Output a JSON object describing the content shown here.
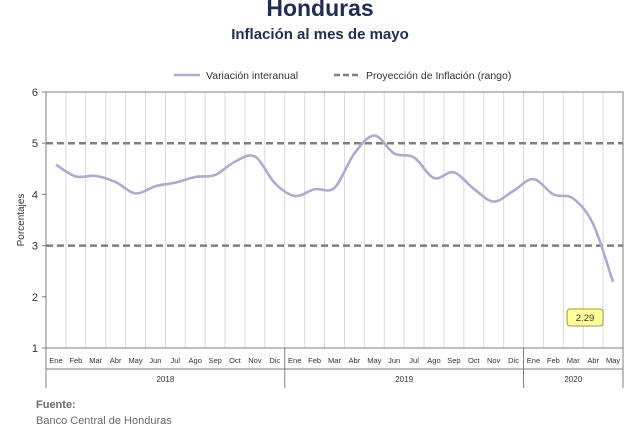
{
  "header": {
    "title": "Honduras",
    "subtitle": "Inflación al mes de mayo"
  },
  "source": {
    "label": "Fuente:",
    "text": "Banco Central de Honduras"
  },
  "colors": {
    "series": "#b4a7d0",
    "projection": "#7f7f7f",
    "title": "#1f2d55",
    "callout_fill": "#ffff99"
  },
  "chart_data": {
    "type": "line",
    "ylabel": "Porcentajes",
    "ylim": [
      1,
      6
    ],
    "yticks": [
      1,
      2,
      3,
      4,
      5,
      6
    ],
    "grid": "vertical",
    "legend_position": "top",
    "month_labels": [
      "Ene",
      "Feb",
      "Mar",
      "Abr",
      "May",
      "Jun",
      "Jul",
      "Ago",
      "Sep",
      "Oct",
      "Nov",
      "Dic",
      "Ene",
      "Feb",
      "Mar",
      "Abr",
      "May",
      "Jun",
      "Jul",
      "Ago",
      "Sep",
      "Oct",
      "Nov",
      "Dic",
      "Ene",
      "Feb",
      "Mar",
      "Abr",
      "May"
    ],
    "year_groups": [
      {
        "label": "2018",
        "count": 12
      },
      {
        "label": "2019",
        "count": 12
      },
      {
        "label": "2020",
        "count": 5
      }
    ],
    "series": [
      {
        "name": "Variación interanual",
        "values": [
          4.58,
          4.35,
          4.36,
          4.24,
          4.02,
          4.16,
          4.23,
          4.34,
          4.38,
          4.64,
          4.74,
          4.22,
          3.97,
          4.1,
          4.13,
          4.8,
          5.15,
          4.8,
          4.72,
          4.32,
          4.43,
          4.11,
          3.86,
          4.07,
          4.3,
          4.0,
          3.92,
          3.42,
          2.29
        ]
      },
      {
        "name": "Proyección de Inflación (rango)",
        "band": [
          3,
          5
        ]
      }
    ],
    "callout": {
      "index": 28,
      "value": "2.29"
    }
  }
}
